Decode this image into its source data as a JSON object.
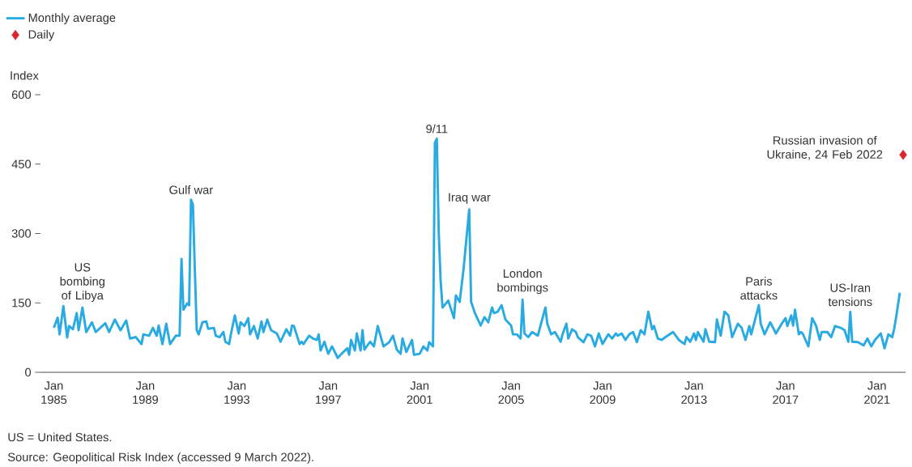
{
  "chart_data": {
    "type": "line",
    "ylabel": "Index",
    "legend": "top left",
    "xlim": [
      "1984-06",
      "2022-04"
    ],
    "ylim": [
      0,
      600
    ],
    "xticks": [
      {
        "value": "1985-01",
        "label": "Jan 1985"
      },
      {
        "value": "1989-01",
        "label": "Jan 1989"
      },
      {
        "value": "1993-01",
        "label": "Jan 1993"
      },
      {
        "value": "1997-01",
        "label": "Jan 1997"
      },
      {
        "value": "2001-01",
        "label": "Jan 2001"
      },
      {
        "value": "2005-01",
        "label": "Jan 2005"
      },
      {
        "value": "2009-01",
        "label": "Jan 2009"
      },
      {
        "value": "2013-01",
        "label": "Jan 2013"
      },
      {
        "value": "2017-01",
        "label": "Jan 2017"
      },
      {
        "value": "2021-01",
        "label": "Jan 2021"
      }
    ],
    "yticks": [
      0,
      150,
      300,
      450,
      600
    ],
    "series": [
      {
        "name": "Monthly average",
        "color": "#29abe2",
        "marker": "none",
        "x": [
          "1985-01",
          "1985-03",
          "1985-04",
          "1985-06",
          "1985-08",
          "1985-09",
          "1985-11",
          "1986-01",
          "1986-02",
          "1986-04",
          "1986-06",
          "1986-09",
          "1986-11",
          "1987-04",
          "1987-06",
          "1987-09",
          "1987-12",
          "1988-03",
          "1988-05",
          "1988-08",
          "1988-11",
          "1988-12",
          "1989-03",
          "1989-05",
          "1989-07",
          "1989-08",
          "1989-10",
          "1989-12",
          "1990-02",
          "1990-05",
          "1990-07",
          "1990-08",
          "1990-09",
          "1990-11",
          "1990-12",
          "1991-01",
          "1991-02",
          "1991-03",
          "1991-04",
          "1991-05",
          "1991-07",
          "1991-09",
          "1991-10",
          "1992-01",
          "1992-02",
          "1992-04",
          "1992-06",
          "1992-07",
          "1992-09",
          "1992-10",
          "1992-12",
          "1993-02",
          "1993-03",
          "1993-05",
          "1993-07",
          "1993-08",
          "1993-10",
          "1993-12",
          "1994-02",
          "1994-03",
          "1994-05",
          "1994-07",
          "1994-10",
          "1994-12",
          "1995-03",
          "1995-05",
          "1995-06",
          "1995-07",
          "1995-10",
          "1995-11",
          "1995-12",
          "1996-03",
          "1996-05",
          "1996-07",
          "1996-08",
          "1996-09",
          "1996-11",
          "1997-01",
          "1997-03",
          "1997-06",
          "1997-08",
          "1997-11",
          "1997-12",
          "1998-01",
          "1998-03",
          "1998-04",
          "1998-06",
          "1998-07",
          "1998-08",
          "1998-11",
          "1999-01",
          "1999-03",
          "1999-06",
          "1999-09",
          "1999-11",
          "2000-01",
          "2000-03",
          "2000-04",
          "2000-06",
          "2000-09",
          "2000-10",
          "2001-01",
          "2001-03",
          "2001-05",
          "2001-06",
          "2001-08",
          "2001-09",
          "2001-10",
          "2001-11",
          "2001-12",
          "2002-01",
          "2002-04",
          "2002-07",
          "2002-08",
          "2002-10",
          "2002-12",
          "2003-03",
          "2003-04",
          "2003-06",
          "2003-09",
          "2003-11",
          "2004-01",
          "2004-03",
          "2004-04",
          "2004-06",
          "2004-08",
          "2004-10",
          "2005-01",
          "2005-02",
          "2005-04",
          "2005-06",
          "2005-07",
          "2005-08",
          "2005-10",
          "2005-12",
          "2006-03",
          "2006-07",
          "2006-08",
          "2006-10",
          "2006-12",
          "2007-03",
          "2007-04",
          "2007-06",
          "2007-07",
          "2007-09",
          "2007-11",
          "2007-12",
          "2008-03",
          "2008-05",
          "2008-07",
          "2008-09",
          "2008-11",
          "2009-01",
          "2009-04",
          "2009-06",
          "2009-08",
          "2009-09",
          "2009-11",
          "2010-01",
          "2010-03",
          "2010-05",
          "2010-07",
          "2010-09",
          "2010-11",
          "2011-01",
          "2011-03",
          "2011-04",
          "2011-06",
          "2011-08",
          "2011-10",
          "2012-02",
          "2012-05",
          "2012-08",
          "2012-09",
          "2012-11",
          "2013-01",
          "2013-02",
          "2013-03",
          "2013-06",
          "2013-07",
          "2013-09",
          "2013-12",
          "2014-01",
          "2014-03",
          "2014-05",
          "2014-07",
          "2014-09",
          "2014-12",
          "2015-02",
          "2015-04",
          "2015-06",
          "2015-07",
          "2015-11",
          "2015-12",
          "2016-02",
          "2016-05",
          "2016-08",
          "2016-11",
          "2017-01",
          "2017-02",
          "2017-04",
          "2017-05",
          "2017-06",
          "2017-08",
          "2017-09",
          "2017-10",
          "2018-01",
          "2018-03",
          "2018-05",
          "2018-07",
          "2018-08",
          "2018-11",
          "2019-01",
          "2019-03",
          "2019-06",
          "2019-08",
          "2019-10",
          "2019-11",
          "2019-12",
          "2020-03",
          "2020-06",
          "2020-08",
          "2020-10",
          "2020-12",
          "2021-03",
          "2021-05",
          "2021-07",
          "2021-09",
          "2021-10",
          "2021-11",
          "2022-01"
        ],
        "values": [
          96,
          118,
          82,
          143,
          75,
          100,
          93,
          128,
          91,
          140,
          87,
          108,
          87,
          106,
          87,
          114,
          91,
          112,
          73,
          76,
          61,
          82,
          79,
          96,
          79,
          101,
          61,
          105,
          61,
          79,
          79,
          245,
          135,
          149,
          145,
          373,
          362,
          222,
          91,
          82,
          108,
          110,
          94,
          96,
          79,
          76,
          87,
          66,
          61,
          84,
          123,
          84,
          108,
          100,
          117,
          82,
          100,
          73,
          110,
          87,
          114,
          91,
          84,
          66,
          93,
          79,
          101,
          100,
          61,
          66,
          61,
          79,
          73,
          70,
          82,
          47,
          66,
          40,
          56,
          31,
          40,
          52,
          38,
          70,
          47,
          84,
          47,
          91,
          49,
          66,
          56,
          100,
          56,
          65,
          79,
          49,
          40,
          73,
          44,
          70,
          38,
          40,
          56,
          47,
          65,
          56,
          496,
          505,
          303,
          198,
          140,
          155,
          117,
          166,
          152,
          222,
          352,
          152,
          128,
          101,
          119,
          108,
          140,
          128,
          131,
          145,
          114,
          101,
          82,
          82,
          73,
          157,
          84,
          76,
          87,
          79,
          140,
          105,
          82,
          87,
          66,
          82,
          105,
          73,
          93,
          87,
          76,
          65,
          82,
          79,
          56,
          84,
          61,
          82,
          73,
          84,
          79,
          84,
          70,
          82,
          87,
          65,
          91,
          82,
          131,
          93,
          100,
          73,
          70,
          76,
          87,
          70,
          61,
          76,
          66,
          84,
          70,
          87,
          66,
          93,
          66,
          65,
          114,
          79,
          131,
          123,
          76,
          105,
          96,
          70,
          100,
          82,
          145,
          105,
          82,
          108,
          84,
          105,
          117,
          100,
          123,
          101,
          135,
          82,
          87,
          84,
          56,
          117,
          101,
          70,
          87,
          87,
          76,
          100,
          96,
          91,
          66,
          131,
          66,
          65,
          58,
          73,
          56,
          70,
          84,
          52,
          82,
          76,
          93,
          117,
          172
        ]
      },
      {
        "name": "Daily",
        "type": "scatter",
        "color": "#d7262e",
        "marker": "diamond",
        "x": [
          "2022-02-24"
        ],
        "values": [
          470
        ]
      }
    ],
    "annotations": [
      {
        "text": "US bombing of Libya",
        "x": "1986-04",
        "y": 140
      },
      {
        "text": "Gulf war",
        "x": "1991-01",
        "y": 373
      },
      {
        "text": "9/11",
        "x": "2001-10",
        "y": 505
      },
      {
        "text": "Iraq war",
        "x": "2003-03",
        "y": 352
      },
      {
        "text": "London bombings",
        "x": "2005-07",
        "y": 157
      },
      {
        "text": "Paris attacks",
        "x": "2015-11",
        "y": 145
      },
      {
        "text": "US-Iran tensions",
        "x": "2019-11",
        "y": 131
      },
      {
        "text": "Russian invasion of Ukraine, 24 Feb 2022",
        "x": "2022-02-24",
        "y": 470
      },
      "US = United States.",
      "Source: Geopolitical Risk Index (accessed 9 March 2022)."
    ]
  }
}
